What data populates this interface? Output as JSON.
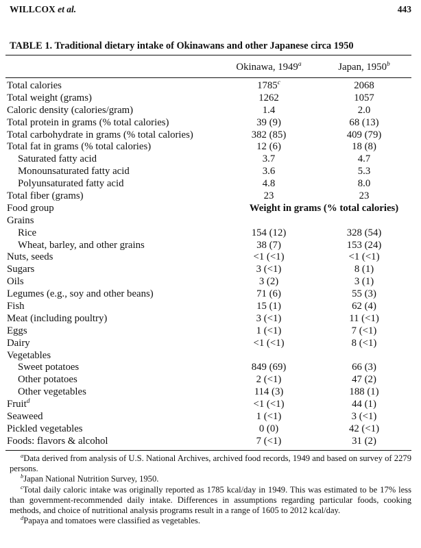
{
  "header": {
    "author": "WILLCOX",
    "author_suffix": "et al.",
    "page_number": "443"
  },
  "table": {
    "caption": "TABLE 1.  Traditional dietary intake of Okinawans and other Japanese circa 1950",
    "columns": [
      {
        "label": "Okinawa, 1949",
        "mark": "a"
      },
      {
        "label": "Japan, 1950",
        "mark": "b"
      }
    ],
    "rows": [
      {
        "label": "Total calories",
        "indent": false,
        "okinawa": "1785",
        "okinawa_mark": "c",
        "japan": "2068"
      },
      {
        "label": "Total weight (grams)",
        "indent": false,
        "okinawa": "1262",
        "japan": "1057"
      },
      {
        "label": "Caloric density (calories/gram)",
        "indent": false,
        "okinawa": "1.4",
        "japan": "2.0"
      },
      {
        "label": "Total protein in grams (% total calories)",
        "indent": false,
        "okinawa": "39 (9)",
        "japan": "68 (13)"
      },
      {
        "label": "Total carbohydrate in grams (% total calories)",
        "indent": false,
        "okinawa": "382 (85)",
        "japan": "409 (79)"
      },
      {
        "label": "Total fat in grams (% total calories)",
        "indent": false,
        "okinawa": "12 (6)",
        "japan": "18 (8)"
      },
      {
        "label": "Saturated fatty acid",
        "indent": true,
        "okinawa": "3.7",
        "japan": "4.7"
      },
      {
        "label": "Monounsaturated fatty acid",
        "indent": true,
        "okinawa": "3.6",
        "japan": "5.3"
      },
      {
        "label": "Polyunsaturated fatty acid",
        "indent": true,
        "okinawa": "4.8",
        "japan": "8.0"
      },
      {
        "label": "Total fiber (grams)",
        "indent": false,
        "okinawa": "23",
        "japan": "23"
      },
      {
        "label": "Food group",
        "indent": false,
        "span": "Weight in grams (% total calories)"
      },
      {
        "label": "Grains",
        "indent": false
      },
      {
        "label": "Rice",
        "indent": true,
        "okinawa": "154 (12)",
        "japan": "328 (54)"
      },
      {
        "label": "Wheat, barley, and other grains",
        "indent": true,
        "okinawa": "38 (7)",
        "japan": "153 (24)"
      },
      {
        "label": "Nuts, seeds",
        "indent": false,
        "okinawa": "<1 (<1)",
        "japan": "<1 (<1)"
      },
      {
        "label": "Sugars",
        "indent": false,
        "okinawa": "3 (<1)",
        "japan": "8 (1)"
      },
      {
        "label": "Oils",
        "indent": false,
        "okinawa": "3 (2)",
        "japan": "3 (1)"
      },
      {
        "label": "Legumes (e.g., soy and other beans)",
        "indent": false,
        "okinawa": "71 (6)",
        "japan": "55 (3)"
      },
      {
        "label": "Fish",
        "indent": false,
        "okinawa": "15 (1)",
        "japan": "62 (4)"
      },
      {
        "label": "Meat (including poultry)",
        "indent": false,
        "okinawa": "3 (<1)",
        "japan": "11 (<1)"
      },
      {
        "label": "Eggs",
        "indent": false,
        "okinawa": "1 (<1)",
        "japan": "7 (<1)"
      },
      {
        "label": "Dairy",
        "indent": false,
        "okinawa": "<1 (<1)",
        "japan": "8 (<1)"
      },
      {
        "label": "Vegetables",
        "indent": false
      },
      {
        "label": "Sweet potatoes",
        "indent": true,
        "okinawa": "849 (69)",
        "japan": "66 (3)"
      },
      {
        "label": "Other potatoes",
        "indent": true,
        "okinawa": "2 (<1)",
        "japan": "47 (2)"
      },
      {
        "label": "Other vegetables",
        "indent": true,
        "okinawa": "114 (3)",
        "japan": "188 (1)"
      },
      {
        "label": "Fruit",
        "label_mark": "d",
        "indent": false,
        "okinawa": "<1 (<1)",
        "japan": "44 (1)"
      },
      {
        "label": "Seaweed",
        "indent": false,
        "okinawa": "1 (<1)",
        "japan": "3 (<1)"
      },
      {
        "label": "Pickled vegetables",
        "indent": false,
        "okinawa": "0 (0)",
        "japan": "42 (<1)"
      },
      {
        "label": "Foods: flavors & alcohol",
        "indent": false,
        "okinawa": "7 (<1)",
        "japan": "31 (2)"
      }
    ]
  },
  "footnotes": [
    {
      "mark": "a",
      "text": "Data derived from analysis of U.S. National Archives, archived food records, 1949 and based on survey of 2279 persons."
    },
    {
      "mark": "b",
      "text": "Japan National Nutrition Survey, 1950."
    },
    {
      "mark": "c",
      "text": "Total daily caloric intake was originally reported as 1785 kcal/day in 1949. This was estimated to be 17% less than government-recommended daily intake. Differences in assumptions regarding particular foods, cooking methods, and choice of nutritional analysis programs result in a range of 1605 to 2012 kcal/day."
    },
    {
      "mark": "d",
      "text": "Papaya and tomatoes were classified as vegetables."
    }
  ]
}
